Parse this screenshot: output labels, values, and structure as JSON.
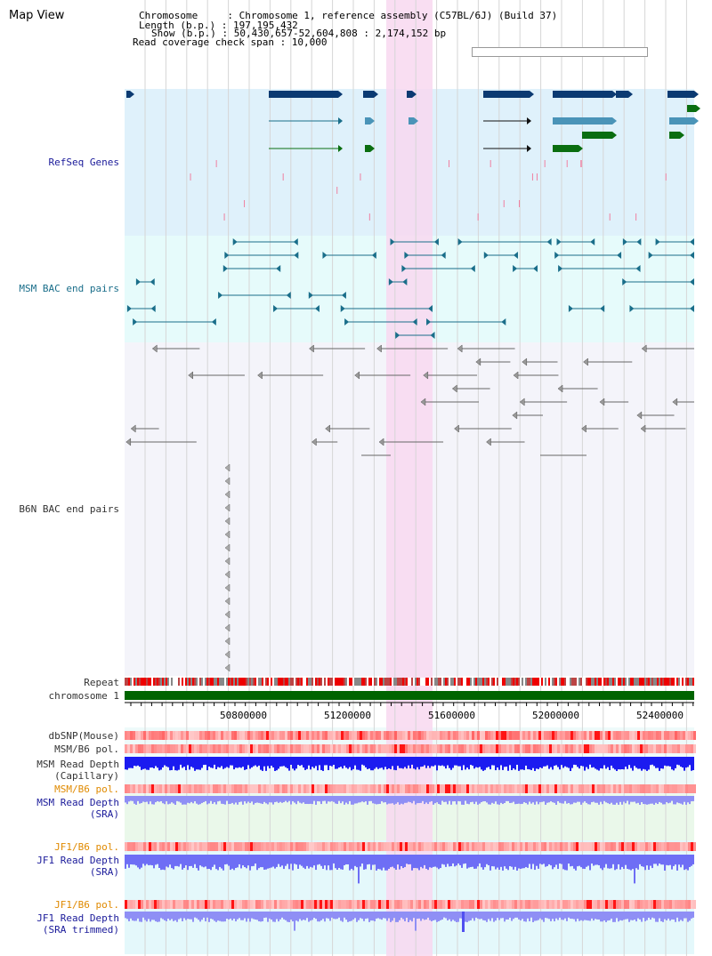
{
  "title": "Map View",
  "header": {
    "chromosome_line": "Chromosome     : Chromosome 1, reference assembly (C57BL/6J) (Build 37)",
    "length_line": "Length (b.p.) : 197,195,432",
    "show_line": "Show (b.p.) : 50,430,657-52,604,808 : 2,174,152 bp",
    "coverage_line": "Read coverage check span : 10,000"
  },
  "tracks": {
    "refseq": "RefSeq Genes",
    "msm_bac": "MSM BAC end pairs",
    "b6n_bac": "B6N BAC end pairs",
    "repeat": "Repeat",
    "chromosome": "chromosome 1"
  },
  "axis": {
    "ticks": [
      "50800000",
      "51200000",
      "51600000",
      "52000000",
      "52400000"
    ]
  },
  "lower_tracks": {
    "dbsnp": "dbSNP(Mouse)",
    "msm_b6_pol_1": "MSM/B6 pol.",
    "msm_depth_cap_1": "MSM Read Depth",
    "msm_depth_cap_2": "(Capillary)",
    "msm_b6_pol_2": "MSM/B6 pol.",
    "msm_depth_sra_1": "MSM Read Depth",
    "msm_depth_sra_2": "(SRA)",
    "jf1_pol_1": "JF1/B6 pol.",
    "jf1_depth_1": "JF1 Read Depth",
    "jf1_depth_2": "(SRA)",
    "jf1_pol_2": "JF1/B6 pol.",
    "jf1_depth_trim_1": "JF1 Read Depth",
    "jf1_depth_trim_2": "(SRA trimmed)"
  },
  "colors": {
    "refseq_bg": "#dff1fb",
    "msm_bg": "#e6fbfb",
    "b6n_bg": "#f4f4fa",
    "highlight": "#f8d8f0",
    "chrom_green": "#006400",
    "gene_navy": "#0b3a72",
    "gene_teal": "#4a94b8",
    "gene_green": "#0a6e10",
    "bac_teal": "#1a6e8a",
    "bac_gray": "#666666",
    "depth_blue": "#1b1bf0",
    "depth_light": "#8f8ff5"
  }
}
